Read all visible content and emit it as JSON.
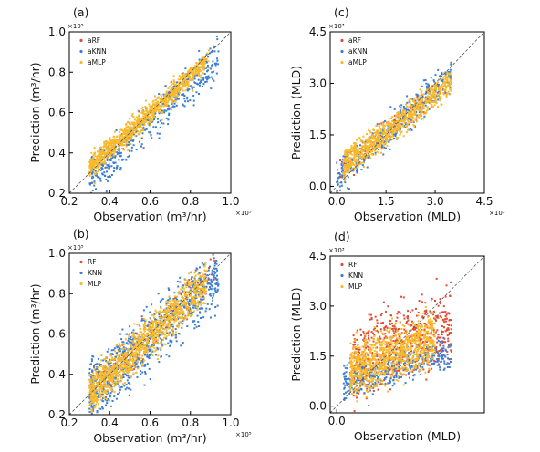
{
  "chart_data": [
    {
      "panel_label": "(a)",
      "type": "scatter",
      "xlabel": "Observation (m³/hr)",
      "ylabel": "Prediction (m³/hr)",
      "x_multiplier": "×10⁵",
      "y_multiplier": "×10⁵",
      "xlim": [
        0.2,
        1.0
      ],
      "ylim": [
        0.2,
        1.0
      ],
      "xticks": [
        0.2,
        0.4,
        0.6,
        0.8,
        1.0
      ],
      "yticks": [
        0.2,
        0.4,
        0.6,
        0.8,
        1.0
      ],
      "tick_labels": [
        "0.2",
        "0.4",
        "0.6",
        "0.8",
        "1.0"
      ],
      "reference_line": "1:1 dashed",
      "legend_placement": "top-left",
      "series": [
        {
          "name": "aRF",
          "color": "#e34a33"
        },
        {
          "name": "aKNN",
          "color": "#3a7fd5"
        },
        {
          "name": "aMLP",
          "color": "#f9b92c"
        }
      ]
    },
    {
      "panel_label": "(c)",
      "type": "scatter",
      "xlabel": "Observation (MLD)",
      "ylabel": "Prediction (MLD)",
      "x_multiplier": "×10³",
      "y_multiplier": "×10³",
      "xlim": [
        -0.2,
        4.5
      ],
      "ylim": [
        -0.2,
        4.5
      ],
      "xticks": [
        0.0,
        1.5,
        3.0,
        4.5
      ],
      "yticks": [
        0.0,
        1.5,
        3.0,
        4.5
      ],
      "tick_labels": [
        "0.0",
        "1.5",
        "3.0",
        "4.5"
      ],
      "reference_line": "1:1 dashed",
      "legend_placement": "top-left",
      "series": [
        {
          "name": "aRF",
          "color": "#e34a33"
        },
        {
          "name": "aKNN",
          "color": "#3a7fd5"
        },
        {
          "name": "aMLP",
          "color": "#f9b92c"
        }
      ]
    },
    {
      "panel_label": "(b)",
      "type": "scatter",
      "xlabel": "Observation (m³/hr)",
      "ylabel": "Prediction (m³/hr)",
      "x_multiplier": "×10⁵",
      "y_multiplier": "×10⁵",
      "xlim": [
        0.2,
        1.0
      ],
      "ylim": [
        0.2,
        1.0
      ],
      "xticks": [
        0.2,
        0.4,
        0.6,
        0.8,
        1.0
      ],
      "yticks": [
        0.2,
        0.4,
        0.6,
        0.8,
        1.0
      ],
      "tick_labels": [
        "0.2",
        "0.4",
        "0.6",
        "0.8",
        "1.0"
      ],
      "reference_line": "1:1 dashed",
      "legend_placement": "top-left",
      "series": [
        {
          "name": "RF",
          "color": "#e34a33"
        },
        {
          "name": "KNN",
          "color": "#3a7fd5"
        },
        {
          "name": "MLP",
          "color": "#f9b92c"
        }
      ]
    },
    {
      "panel_label": "(d)",
      "type": "scatter",
      "xlabel": "Observation (MLD)",
      "ylabel": "Prediction (MLD)",
      "x_multiplier": "",
      "y_multiplier": "×10³",
      "xlim": [
        -0.2,
        4.5
      ],
      "ylim": [
        -0.2,
        4.5
      ],
      "xticks": [
        0.0
      ],
      "yticks": [
        0.0,
        1.5,
        3.0,
        4.5
      ],
      "tick_labels": [
        "0.0",
        "1.5",
        "3.0",
        "4.5"
      ],
      "x_tick_labels": [
        "0.0"
      ],
      "reference_line": "1:1 dashed",
      "legend_placement": "top-left",
      "series": [
        {
          "name": "RF",
          "color": "#e34a33"
        },
        {
          "name": "KNN",
          "color": "#3a7fd5"
        },
        {
          "name": "MLP",
          "color": "#f9b92c"
        }
      ]
    }
  ]
}
